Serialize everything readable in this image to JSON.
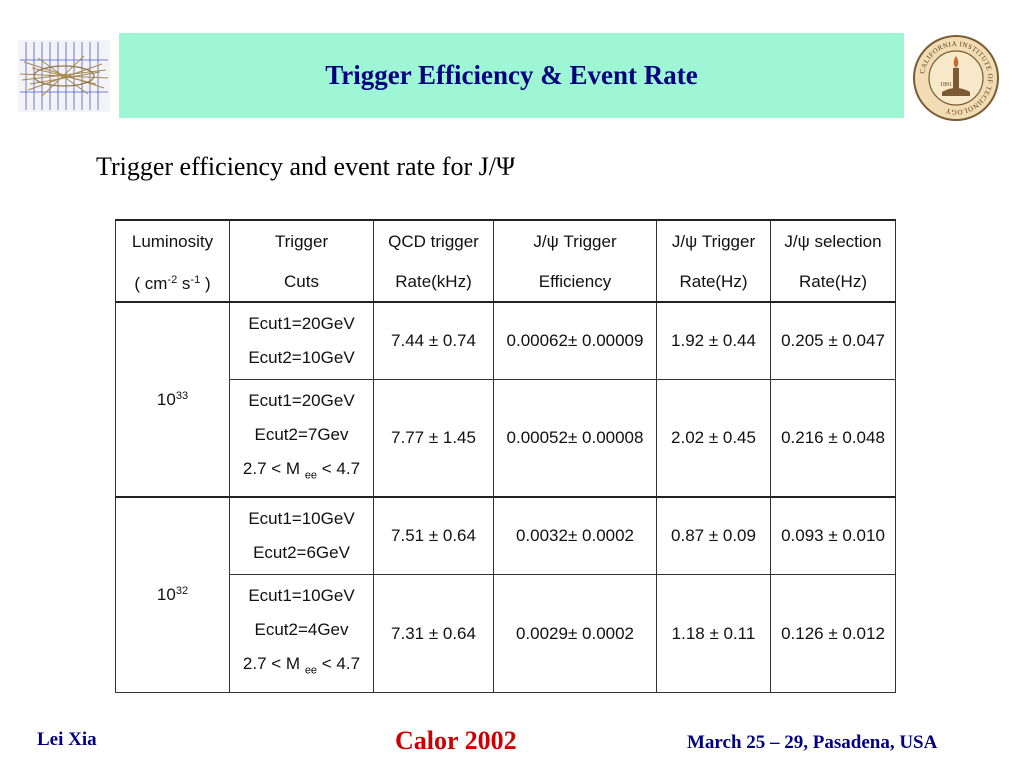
{
  "title": "Trigger Efficiency & Event Rate",
  "subtitle": "Trigger efficiency and event rate for J/Ψ",
  "seal": {
    "year": "1891",
    "motto": "CALIFORNIA INSTITUTE OF TECHNOLOGY"
  },
  "table": {
    "headers": {
      "luminosity": "Luminosity",
      "luminosity_unit_prefix": "( cm",
      "luminosity_unit_exp1": "-2",
      "luminosity_unit_mid": " s",
      "luminosity_unit_exp2": "-1",
      "luminosity_unit_suffix": " )",
      "trigger": "Trigger",
      "cuts": "Cuts",
      "qcd": "QCD trigger",
      "qcd_unit": "Rate(kHz)",
      "jpsi_eff": "J/ψ Trigger",
      "jpsi_eff_sub": "Efficiency",
      "jpsi_rate": "J/ψ Trigger",
      "jpsi_rate_sub": "Rate(Hz)",
      "sel": "J/ψ selection",
      "sel_sub": "Rate(Hz)"
    },
    "groups": [
      {
        "lumi_base": "10",
        "lumi_exp": "33",
        "rows": [
          {
            "cut1": "Ecut1=20GeV",
            "cut2": "Ecut2=10GeV",
            "qcd": "7.44 ± 0.74",
            "eff": "0.00062± 0.00009",
            "rate": "1.92 ± 0.44",
            "sel": "0.205 ± 0.047"
          },
          {
            "cut1": "Ecut1=20GeV",
            "cut2": "Ecut2=7Gev",
            "cut3_prefix": "2.7 < M ",
            "cut3_sub": "ee",
            "cut3_suffix": " < 4.7",
            "qcd": "7.77 ± 1.45",
            "eff": "0.00052± 0.00008",
            "rate": "2.02 ± 0.45",
            "sel": "0.216 ± 0.048"
          }
        ]
      },
      {
        "lumi_base": "10",
        "lumi_exp": "32",
        "rows": [
          {
            "cut1": "Ecut1=10GeV",
            "cut2": "Ecut2=6GeV",
            "qcd": "7.51 ± 0.64",
            "eff": "0.0032± 0.0002",
            "rate": "0.87 ± 0.09",
            "sel": "0.093 ± 0.010"
          },
          {
            "cut1": "Ecut1=10GeV",
            "cut2": "Ecut2=4Gev",
            "cut3_prefix": "2.7 < M ",
            "cut3_sub": "ee",
            "cut3_suffix": " < 4.7",
            "qcd": "7.31 ± 0.64",
            "eff": "0.0029± 0.0002",
            "rate": "1.18 ± 0.11",
            "sel": "0.126 ± 0.012"
          }
        ]
      }
    ]
  },
  "footer": {
    "author": "Lei Xia",
    "conference": "Calor 2002",
    "date_place": "March 25 – 29, Pasadena, USA"
  },
  "colors": {
    "banner": "#9ff6d4",
    "title": "#000080",
    "conference": "#cc0000"
  }
}
